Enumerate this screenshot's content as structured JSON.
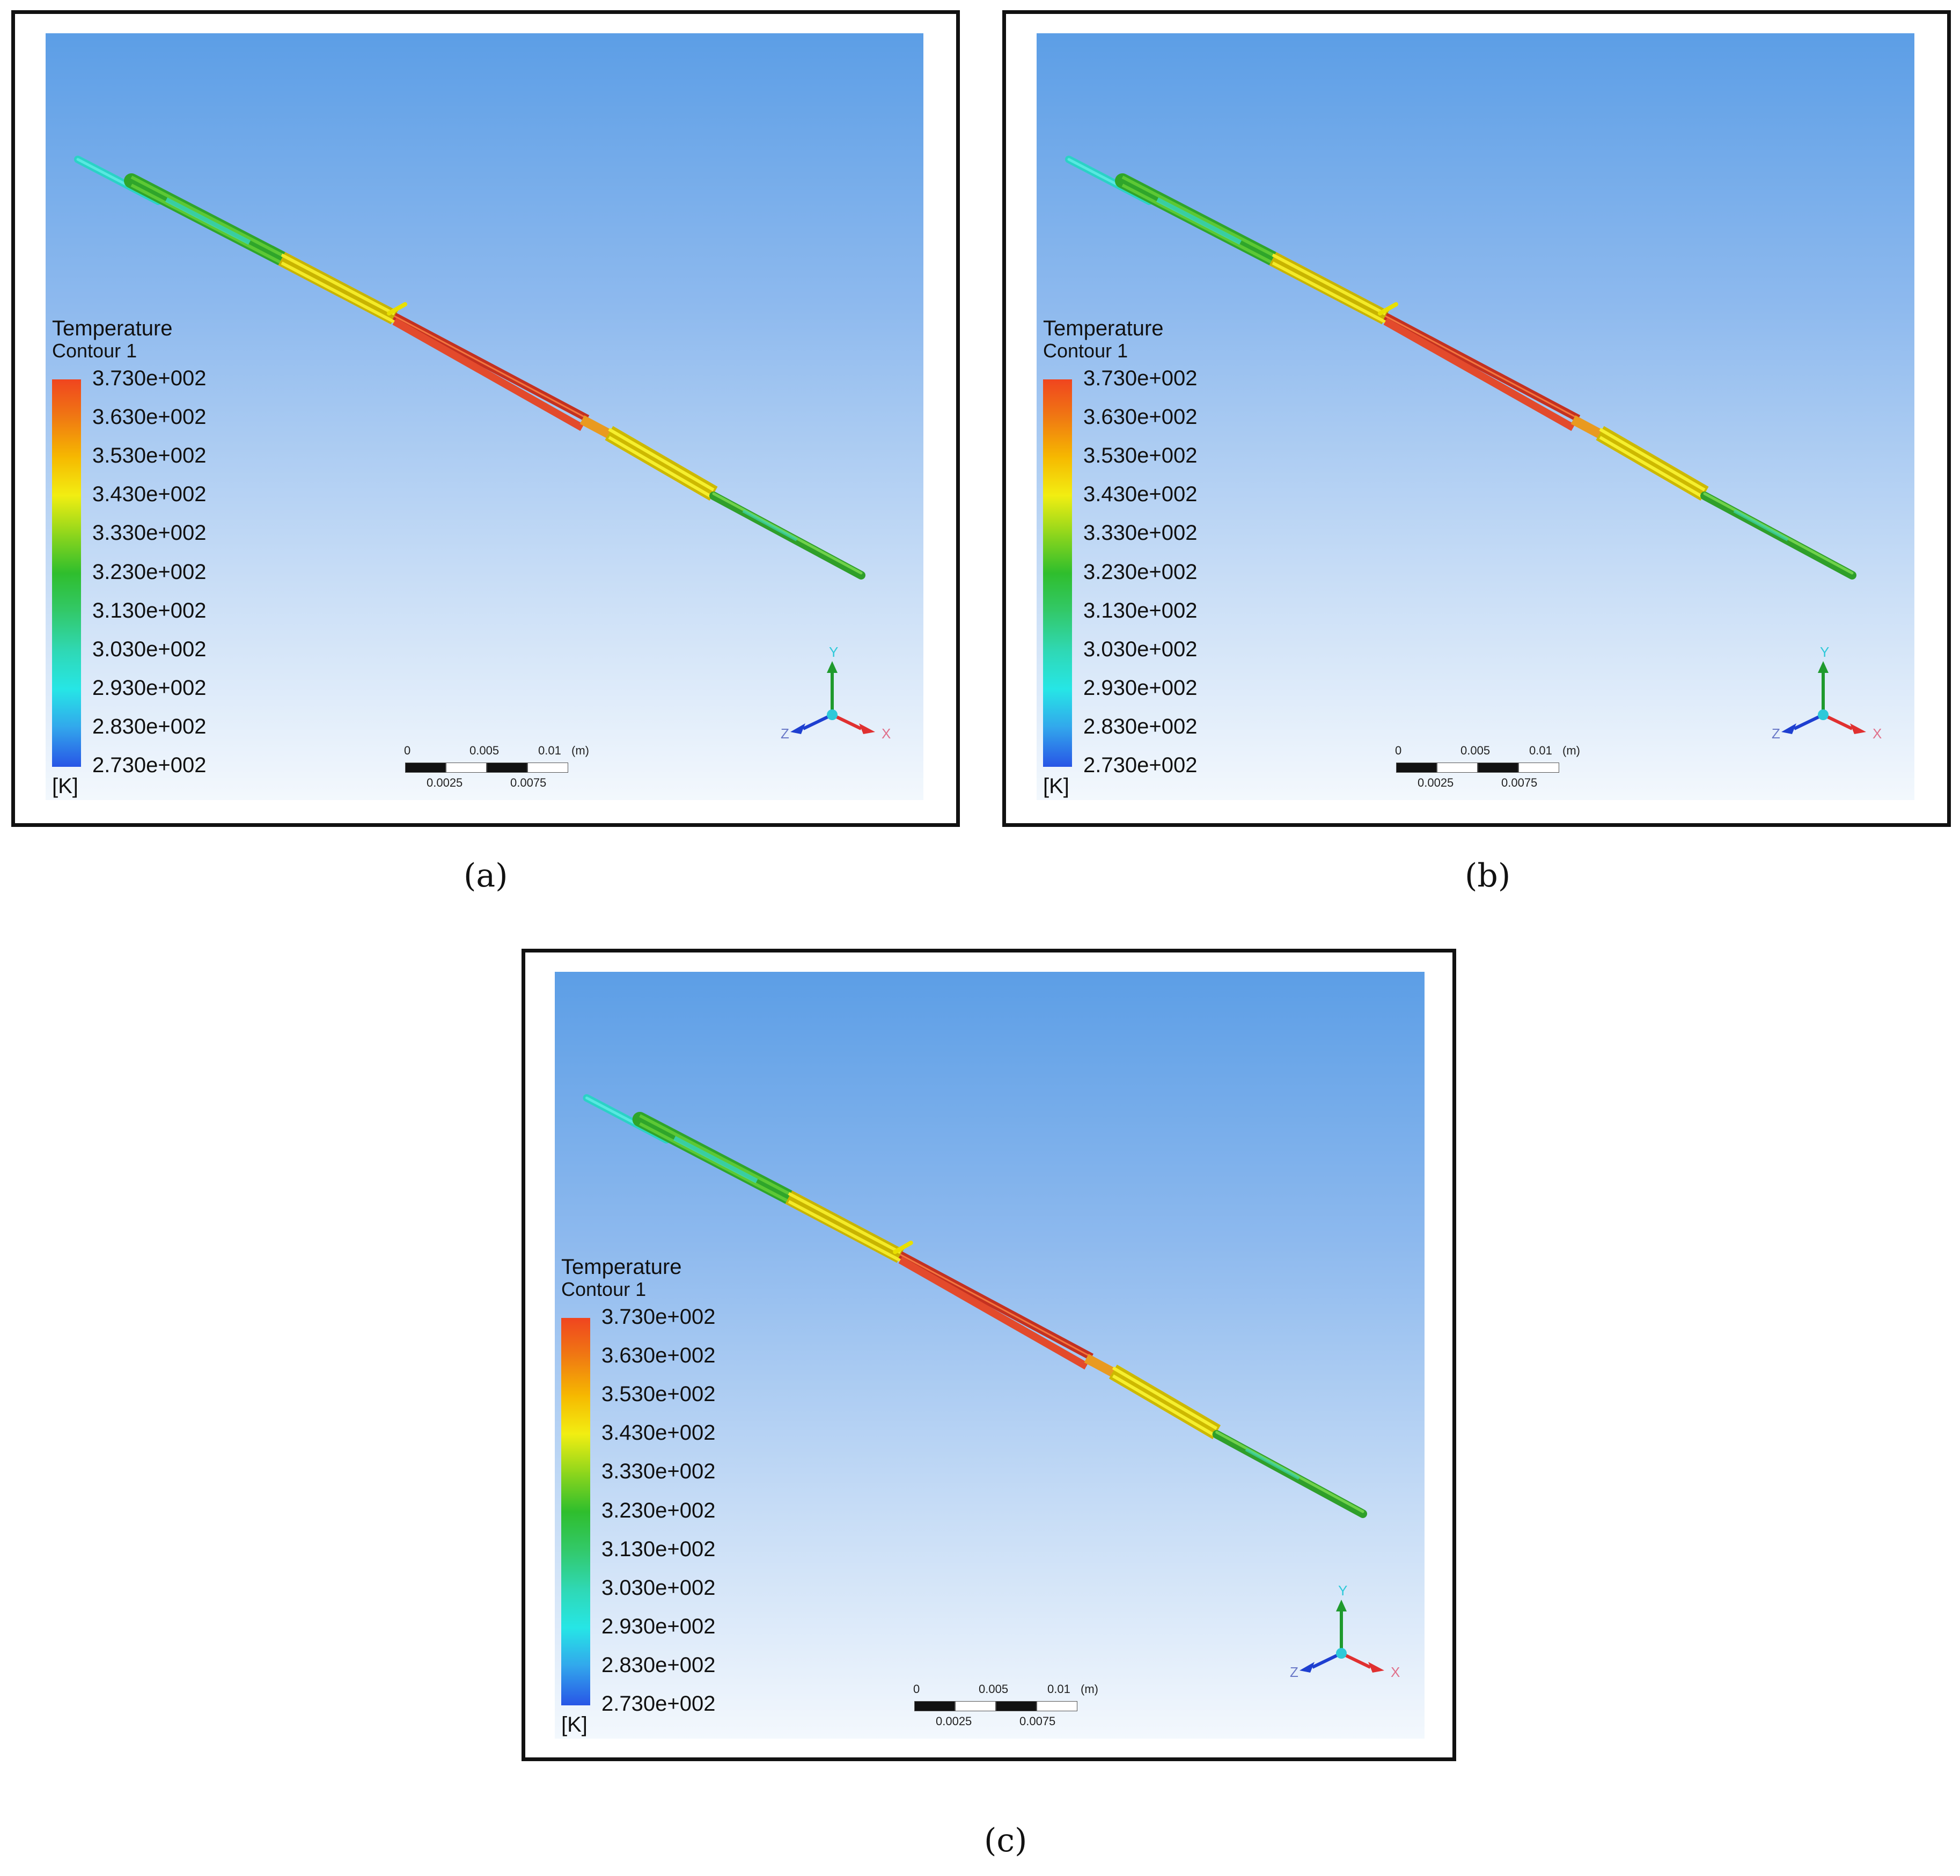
{
  "panels": [
    {
      "id": "a",
      "caption": "(a)",
      "legend": {
        "title": "Temperature",
        "subtitle": "Contour 1",
        "unit": "[K]",
        "ticks": [
          "3.730e+002",
          "3.630e+002",
          "3.530e+002",
          "3.430e+002",
          "3.330e+002",
          "3.230e+002",
          "3.130e+002",
          "3.030e+002",
          "2.930e+002",
          "2.830e+002",
          "2.730e+002"
        ]
      },
      "scale": {
        "top": [
          "0",
          "0.005",
          "0.01",
          "(m)"
        ],
        "bottom": [
          "0.0025",
          "0.0075"
        ]
      },
      "axes": {
        "x": "X",
        "y": "Y",
        "z": "Z"
      }
    },
    {
      "id": "b",
      "caption": "(b)",
      "legend": {
        "title": "Temperature",
        "subtitle": "Contour 1",
        "unit": "[K]",
        "ticks": [
          "3.730e+002",
          "3.630e+002",
          "3.530e+002",
          "3.430e+002",
          "3.330e+002",
          "3.230e+002",
          "3.130e+002",
          "3.030e+002",
          "2.930e+002",
          "2.830e+002",
          "2.730e+002"
        ]
      },
      "scale": {
        "top": [
          "0",
          "0.005",
          "0.01",
          "(m)"
        ],
        "bottom": [
          "0.0025",
          "0.0075"
        ]
      },
      "axes": {
        "x": "X",
        "y": "Y",
        "z": "Z"
      }
    },
    {
      "id": "c",
      "caption": "(c)",
      "legend": {
        "title": "Temperature",
        "subtitle": "Contour 1",
        "unit": "[K]",
        "ticks": [
          "3.730e+002",
          "3.630e+002",
          "3.530e+002",
          "3.430e+002",
          "3.330e+002",
          "3.230e+002",
          "3.130e+002",
          "3.030e+002",
          "2.930e+002",
          "2.830e+002",
          "2.730e+002"
        ]
      },
      "scale": {
        "top": [
          "0",
          "0.005",
          "0.01",
          "(m)"
        ],
        "bottom": [
          "0.0025",
          "0.0075"
        ]
      },
      "axes": {
        "x": "X",
        "y": "Y",
        "z": "Z"
      }
    }
  ],
  "colormap": [
    "#f0451f",
    "#f07a12",
    "#f6b800",
    "#f2ee12",
    "#8fd61c",
    "#2fbe2d",
    "#32c96a",
    "#2fd8b4",
    "#26e6e6",
    "#32a6ec",
    "#2855e6"
  ]
}
